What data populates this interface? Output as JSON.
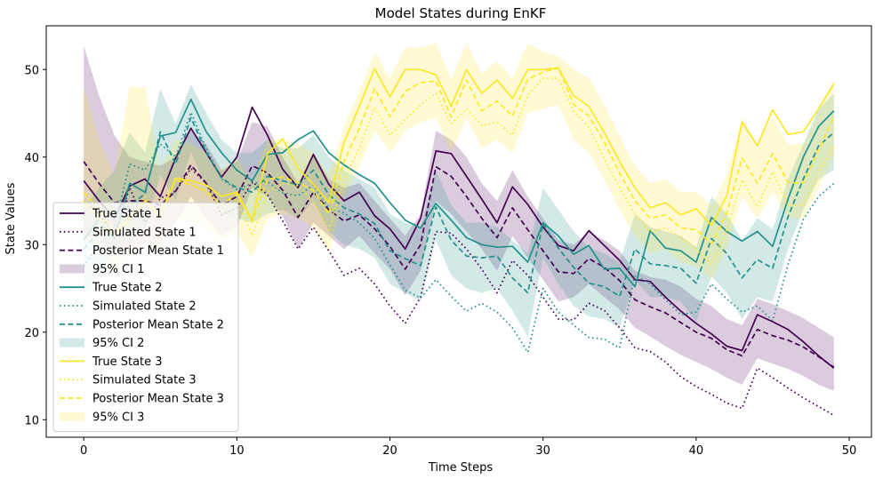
{
  "chart_data": {
    "type": "line",
    "title": "Model States during EnKF",
    "xlabel": "Time Steps",
    "ylabel": "State Values",
    "xlim": [
      -2.45,
      51.45
    ],
    "ylim": [
      8.0,
      55.0
    ],
    "xticks": [
      0,
      10,
      20,
      30,
      40,
      50
    ],
    "yticks": [
      10,
      20,
      30,
      40,
      50
    ],
    "x": [
      0,
      1,
      2,
      3,
      4,
      5,
      6,
      7,
      8,
      9,
      10,
      11,
      12,
      13,
      14,
      15,
      16,
      17,
      18,
      19,
      20,
      21,
      22,
      23,
      24,
      25,
      26,
      27,
      28,
      29,
      30,
      31,
      32,
      33,
      34,
      35,
      36,
      37,
      38,
      39,
      40,
      41,
      42,
      43,
      44,
      45,
      46,
      47,
      48,
      49
    ],
    "legend_position": "lower left",
    "colors": {
      "state1": "#440154",
      "state2": "#21918c",
      "state3": "#fde725"
    },
    "series": [
      {
        "key": "true1",
        "name": "True State 1",
        "style": "solid",
        "color": "#440154",
        "values": [
          37.3,
          35,
          33,
          36.7,
          37.5,
          35.5,
          39.9,
          43.3,
          40.5,
          37.7,
          40,
          45.7,
          42.5,
          38.6,
          36.5,
          40.3,
          36.9,
          35,
          36,
          33.3,
          31.8,
          29.5,
          33,
          40.7,
          40.4,
          37.8,
          35.2,
          32.5,
          36.6,
          34.6,
          32,
          29.9,
          29.3,
          31.6,
          29.9,
          28.2,
          26,
          25.8,
          24,
          22.4,
          21,
          19.8,
          18.4,
          17.9,
          22,
          21.2,
          20.3,
          18.9,
          17.3,
          15.9
        ]
      },
      {
        "key": "sim1",
        "name": "Simulated State 1",
        "style": "dotted",
        "color": "#440154",
        "values": [
          35,
          33.5,
          31,
          36.5,
          32.5,
          35.3,
          36.1,
          38.7,
          37,
          33.4,
          34.2,
          37.2,
          35.7,
          32.7,
          29.5,
          32,
          29.3,
          26.5,
          27.3,
          25.5,
          23,
          21,
          24,
          31.5,
          31.3,
          29.5,
          27.2,
          24.5,
          28.2,
          26.5,
          24,
          21.5,
          21.4,
          23.3,
          22.5,
          20.5,
          18.2,
          17.8,
          16.6,
          14.9,
          13.8,
          12.9,
          11.9,
          11.3,
          15.9,
          14.8,
          13.6,
          12.5,
          11.5,
          10.5
        ]
      },
      {
        "key": "post1",
        "name": "Posterior Mean State 1",
        "style": "dashed",
        "color": "#440154",
        "values": [
          39.5,
          37,
          34.8,
          35,
          35,
          34.5,
          36.1,
          39.1,
          37,
          34.5,
          35.5,
          39,
          38.2,
          36.2,
          33.1,
          36,
          34,
          32.7,
          33.4,
          31.8,
          29.8,
          27.2,
          30,
          38.9,
          37.8,
          35.5,
          33,
          30.8,
          34.2,
          31.7,
          29.3,
          26.9,
          26.7,
          28.4,
          27.4,
          25.9,
          23.7,
          22.9,
          22.2,
          21.1,
          20,
          19.3,
          18,
          17.3,
          20.3,
          19.6,
          19.1,
          18.3,
          17.2,
          16
        ]
      },
      {
        "key": "true2",
        "name": "True State 2",
        "style": "solid",
        "color": "#21918c",
        "values": [
          30.5,
          33,
          30.7,
          37,
          36,
          42.4,
          42.8,
          46.6,
          42.9,
          40.5,
          38.5,
          37.3,
          40.3,
          40.5,
          42,
          43,
          40.5,
          39.1,
          38,
          37,
          34.8,
          32.8,
          31.9,
          34.7,
          32.8,
          30.8,
          30,
          29.7,
          29.8,
          28,
          32.5,
          31,
          28.9,
          29.9,
          27.2,
          27.3,
          25.2,
          31.6,
          29.6,
          29.3,
          28,
          33.1,
          31.5,
          30.4,
          31.5,
          29.8,
          35.2,
          40,
          43.5,
          45.3
        ]
      },
      {
        "key": "sim2",
        "name": "Simulated State 2",
        "style": "dotted",
        "color": "#21918c",
        "values": [
          27.5,
          30,
          32,
          39.2,
          38.5,
          41.5,
          40,
          45.1,
          41,
          37.5,
          36.3,
          37,
          37.2,
          35.9,
          35.6,
          36.8,
          34.2,
          33.6,
          32.5,
          30.7,
          27.7,
          24.8,
          23.9,
          26,
          24.1,
          22.4,
          23.3,
          22.3,
          20.5,
          17.7,
          25,
          22.3,
          20.8,
          19.4,
          19.2,
          18.2,
          26.5,
          25.5,
          23.7,
          22,
          22.3,
          25.5,
          23.8,
          22.3,
          23,
          21.3,
          27.7,
          32.9,
          35.5,
          37
        ]
      },
      {
        "key": "post2",
        "name": "Posterior Mean State 2",
        "style": "dashed",
        "color": "#21918c",
        "values": [
          29.5,
          31.5,
          33.7,
          34.4,
          35.8,
          42.9,
          39.2,
          44.5,
          40.6,
          37.6,
          36.5,
          36,
          37.8,
          37.3,
          36.8,
          38.5,
          35.7,
          34.2,
          33.5,
          32.4,
          29.3,
          28.4,
          27.6,
          34.3,
          30.5,
          28.7,
          28.5,
          28.7,
          26.2,
          24.5,
          32.4,
          29.6,
          27.4,
          25.6,
          25.2,
          24.1,
          29.5,
          27.8,
          27.6,
          27.3,
          25.6,
          30.7,
          29,
          26.2,
          28.3,
          27.3,
          33.2,
          37.5,
          41.3,
          42.8
        ]
      },
      {
        "key": "true3",
        "name": "True State 3",
        "style": "solid",
        "color": "#fde725",
        "values": [
          35,
          33,
          31,
          33,
          35,
          33.1,
          37.6,
          37.3,
          36.8,
          35.5,
          36,
          32.8,
          40.4,
          42.1,
          38.7,
          36.9,
          34.8,
          41.7,
          45.8,
          50.1,
          46.9,
          50,
          50,
          49.4,
          45.8,
          50,
          47.3,
          48.8,
          46.7,
          50,
          50,
          50.2,
          47,
          45.8,
          42.8,
          39.5,
          36.5,
          34.2,
          34.8,
          33.4,
          34.1,
          32.2,
          35.6,
          44,
          41.3,
          45.4,
          42.6,
          42.9,
          45.5,
          48.4
        ]
      },
      {
        "key": "sim3",
        "name": "Simulated State 3",
        "style": "dotted",
        "color": "#fde725",
        "values": [
          35,
          34,
          31,
          32.7,
          35.5,
          33.3,
          37.7,
          36.9,
          35.9,
          33.9,
          35.2,
          31,
          36,
          37,
          36.7,
          35,
          31.7,
          37.5,
          41,
          45.7,
          42.5,
          44.3,
          46,
          47.3,
          43.8,
          45.5,
          43.6,
          44,
          42.5,
          47.1,
          49,
          49,
          45.2,
          43.4,
          39.8,
          36.5,
          33.5,
          31.5,
          31.9,
          30.8,
          29.5,
          27.7,
          31.7,
          37.4,
          34.3,
          38.3,
          34.5,
          34.5,
          38.3,
          41.2
        ]
      },
      {
        "key": "post3",
        "name": "Posterior Mean State 3",
        "style": "dashed",
        "color": "#fde725",
        "values": [
          36,
          34,
          31.5,
          33,
          35,
          33.5,
          37.4,
          36.8,
          36.2,
          34.5,
          35.8,
          32.6,
          37.5,
          37.7,
          37.1,
          36.2,
          33.5,
          39.5,
          43.3,
          47.8,
          44.6,
          47.5,
          48.5,
          48.7,
          44.6,
          48.8,
          45.3,
          46.4,
          44.7,
          48.9,
          49.7,
          50.2,
          46,
          44.7,
          41.7,
          38.2,
          35,
          33,
          33.4,
          31.9,
          31.7,
          30.1,
          33.6,
          39.9,
          37,
          40.4,
          37.1,
          37,
          40.8,
          44.6
        ]
      }
    ],
    "bands": [
      {
        "key": "ci1",
        "name": "95% CI 1",
        "color": "#440154",
        "opacity": 0.2,
        "lower": [
          30.7,
          31,
          29,
          30,
          30,
          30,
          32.5,
          35.5,
          33,
          31,
          32,
          36.5,
          35.5,
          33.2,
          29.5,
          32.5,
          31,
          29.5,
          31,
          29,
          27.2,
          24.2,
          27,
          35,
          33.5,
          31.5,
          29.5,
          27,
          31,
          28.5,
          26,
          23.5,
          24,
          25.5,
          24,
          22.6,
          20.5,
          19.5,
          18.4,
          17.4,
          16.6,
          15.8,
          14.8,
          14,
          17,
          16.4,
          15.8,
          15,
          14,
          13.3
        ],
        "upper": [
          52.7,
          47,
          42.5,
          40,
          39.5,
          39,
          40,
          43,
          41.5,
          38.5,
          39.5,
          44,
          43.5,
          40,
          37,
          40.5,
          37.5,
          36.5,
          37,
          35,
          33,
          31,
          33.5,
          43,
          42,
          40,
          37,
          35,
          38.5,
          35.5,
          33,
          30.5,
          30,
          31.5,
          30.5,
          29.3,
          27,
          26.3,
          26,
          25.2,
          23.8,
          23,
          21.5,
          20.8,
          23.8,
          23.2,
          22.4,
          21.6,
          20.5,
          19.4
        ]
      },
      {
        "key": "ci2",
        "name": "95% CI 2",
        "color": "#21918c",
        "opacity": 0.2,
        "lower": [
          24.2,
          26.5,
          29.5,
          30.5,
          31.5,
          38,
          35,
          40.6,
          36.5,
          33.5,
          33,
          32.5,
          33.5,
          34,
          33,
          35,
          31.5,
          30,
          29.5,
          28.5,
          25.5,
          24.5,
          23.5,
          30.5,
          26.5,
          25,
          24.5,
          25,
          22.5,
          19.5,
          28.5,
          25.5,
          23,
          21.8,
          21.5,
          20.5,
          26,
          24,
          24,
          23.5,
          21.2,
          26.4,
          24.5,
          21.5,
          24,
          23.5,
          29.5,
          34,
          37.5,
          38.5
        ],
        "upper": [
          34,
          36.5,
          38.5,
          42.8,
          40.5,
          47.8,
          43.8,
          48.3,
          45,
          42,
          40.5,
          40.5,
          42,
          41,
          41,
          42.5,
          40,
          38.5,
          37.5,
          36.5,
          33.5,
          32.5,
          32,
          38.5,
          34.5,
          32.5,
          32.5,
          32,
          30.5,
          29,
          36.5,
          34,
          31.5,
          29.7,
          29,
          28,
          33.5,
          32,
          31.5,
          31,
          29.7,
          35.5,
          33.5,
          30.5,
          33,
          31.8,
          37.5,
          41.5,
          45.5,
          47.3
        ]
      },
      {
        "key": "ci3",
        "name": "95% CI 3",
        "color": "#fde725",
        "opacity": 0.2,
        "lower": [
          31,
          29.5,
          27,
          28.5,
          30.5,
          29.5,
          33,
          32.5,
          32,
          30.5,
          31.5,
          28.5,
          33,
          33.5,
          33,
          32,
          29,
          35.5,
          39,
          43,
          40.5,
          43,
          44,
          44.5,
          40.5,
          44.5,
          41,
          42,
          40.5,
          45,
          45.5,
          46,
          42,
          40.5,
          37.5,
          34,
          31,
          29,
          29.5,
          28,
          27.5,
          26,
          29.5,
          35.5,
          33,
          36,
          33,
          33,
          36.5,
          40
        ],
        "upper": [
          48,
          42,
          38,
          48,
          48,
          38.5,
          42,
          41.5,
          40.5,
          38.5,
          40,
          37,
          42,
          42,
          41.5,
          40.5,
          38,
          43.5,
          47.5,
          52,
          49,
          52.5,
          52.5,
          53,
          49,
          53,
          49.5,
          51,
          49,
          53,
          52,
          51.5,
          50,
          49,
          46,
          42.5,
          39,
          37,
          37.5,
          36,
          36,
          34.5,
          38,
          44.5,
          41.5,
          44.5,
          41.5,
          41.5,
          45,
          48.5
        ]
      }
    ],
    "legend": [
      {
        "label": "True State 1",
        "ref": "true1"
      },
      {
        "label": "Simulated State 1",
        "ref": "sim1"
      },
      {
        "label": "Posterior Mean State 1",
        "ref": "post1"
      },
      {
        "label": "95% CI 1",
        "ref": "ci1"
      },
      {
        "label": "True State 2",
        "ref": "true2"
      },
      {
        "label": "Simulated State 2",
        "ref": "sim2"
      },
      {
        "label": "Posterior Mean State 2",
        "ref": "post2"
      },
      {
        "label": "95% CI 2",
        "ref": "ci2"
      },
      {
        "label": "True State 3",
        "ref": "true3"
      },
      {
        "label": "Simulated State 3",
        "ref": "sim3"
      },
      {
        "label": "Posterior Mean State 3",
        "ref": "post3"
      },
      {
        "label": "95% CI 3",
        "ref": "ci3"
      }
    ]
  }
}
